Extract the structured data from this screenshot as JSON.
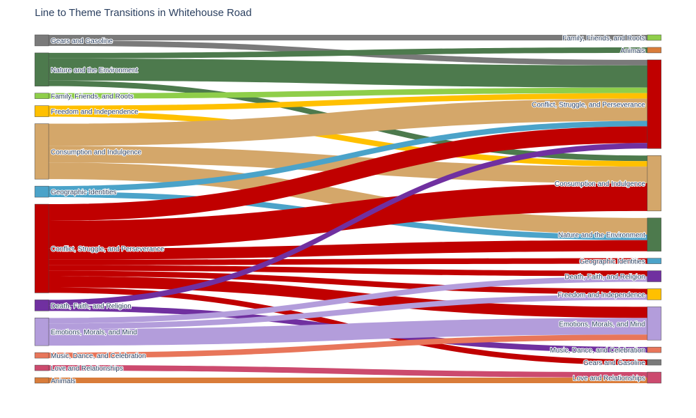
{
  "title": "Line to Theme Transitions in Whitehouse Road",
  "chart_data": {
    "type": "sankey",
    "title": "Line to Theme Transitions in Whitehouse Road",
    "colors": {
      "Gears and Gasoline": "#7a7a7a",
      "Nature and the Environment": "#4d7a4d",
      "Family, Friends, and Roots": "#8fce4a",
      "Freedom and Independence": "#ffc000",
      "Consumption and Indulgence": "#d4a76a",
      "Geographic Identities": "#4ba3c9",
      "Conflict, Struggle, and Perseverance": "#c00000",
      "Death, Faith, and Religion": "#7030a0",
      "Emotions, Morals, and Mind": "#b39ddb",
      "Music, Dance, and Celebration": "#e8765a",
      "Love and Relationships": "#cc4a6e",
      "Animals": "#d97c3a"
    },
    "source_nodes": [
      "Gears and Gasoline",
      "Nature and the Environment",
      "Family, Friends, and Roots",
      "Freedom and Independence",
      "Consumption and Indulgence",
      "Geographic Identities",
      "Conflict, Struggle, and Perseverance",
      "Death, Faith, and Religion",
      "Emotions, Morals, and Mind",
      "Music, Dance, and Celebration",
      "Love and Relationships",
      "Animals"
    ],
    "target_nodes": [
      "Family, Friends, and Roots",
      "Animals",
      "Conflict, Struggle, and Perseverance",
      "Consumption and Indulgence",
      "Nature and the Environment",
      "Geographic Identities",
      "Death, Faith, and Religion",
      "Freedom and Independence",
      "Emotions, Morals, and Mind",
      "Music, Dance, and Celebration",
      "Gears and Gasoline",
      "Love and Relationships"
    ],
    "links": [
      {
        "source": "Gears and Gasoline",
        "target": "Family, Friends, and Roots",
        "value": 1
      },
      {
        "source": "Gears and Gasoline",
        "target": "Conflict, Struggle, and Perseverance",
        "value": 1
      },
      {
        "source": "Nature and the Environment",
        "target": "Animals",
        "value": 1
      },
      {
        "source": "Nature and the Environment",
        "target": "Conflict, Struggle, and Perseverance",
        "value": 4
      },
      {
        "source": "Nature and the Environment",
        "target": "Consumption and Indulgence",
        "value": 1
      },
      {
        "source": "Family, Friends, and Roots",
        "target": "Conflict, Struggle, and Perseverance",
        "value": 1
      },
      {
        "source": "Freedom and Independence",
        "target": "Conflict, Struggle, and Perseverance",
        "value": 1
      },
      {
        "source": "Freedom and Independence",
        "target": "Consumption and Indulgence",
        "value": 1
      },
      {
        "source": "Consumption and Indulgence",
        "target": "Conflict, Struggle, and Perseverance",
        "value": 4
      },
      {
        "source": "Consumption and Indulgence",
        "target": "Consumption and Indulgence",
        "value": 3
      },
      {
        "source": "Consumption and Indulgence",
        "target": "Nature and the Environment",
        "value": 3
      },
      {
        "source": "Geographic Identities",
        "target": "Conflict, Struggle, and Perseverance",
        "value": 1
      },
      {
        "source": "Geographic Identities",
        "target": "Nature and the Environment",
        "value": 1
      },
      {
        "source": "Conflict, Struggle, and Perseverance",
        "target": "Conflict, Struggle, and Perseverance",
        "value": 3
      },
      {
        "source": "Conflict, Struggle, and Perseverance",
        "target": "Consumption and Indulgence",
        "value": 5
      },
      {
        "source": "Conflict, Struggle, and Perseverance",
        "target": "Nature and the Environment",
        "value": 2
      },
      {
        "source": "Conflict, Struggle, and Perseverance",
        "target": "Geographic Identities",
        "value": 1
      },
      {
        "source": "Conflict, Struggle, and Perseverance",
        "target": "Death, Faith, and Religion",
        "value": 1
      },
      {
        "source": "Conflict, Struggle, and Perseverance",
        "target": "Freedom and Independence",
        "value": 1
      },
      {
        "source": "Conflict, Struggle, and Perseverance",
        "target": "Emotions, Morals, and Mind",
        "value": 2
      },
      {
        "source": "Conflict, Struggle, and Perseverance",
        "target": "Gears and Gasoline",
        "value": 1
      },
      {
        "source": "Death, Faith, and Religion",
        "target": "Conflict, Struggle, and Perseverance",
        "value": 1
      },
      {
        "source": "Death, Faith, and Religion",
        "target": "Music, Dance, and Celebration",
        "value": 1
      },
      {
        "source": "Emotions, Morals, and Mind",
        "target": "Death, Faith, and Religion",
        "value": 1
      },
      {
        "source": "Emotions, Morals, and Mind",
        "target": "Freedom and Independence",
        "value": 1
      },
      {
        "source": "Emotions, Morals, and Mind",
        "target": "Emotions, Morals, and Mind",
        "value": 3
      },
      {
        "source": "Music, Dance, and Celebration",
        "target": "Emotions, Morals, and Mind",
        "value": 1
      },
      {
        "source": "Love and Relationships",
        "target": "Love and Relationships",
        "value": 1
      },
      {
        "source": "Animals",
        "target": "Love and Relationships",
        "value": 1
      }
    ]
  }
}
